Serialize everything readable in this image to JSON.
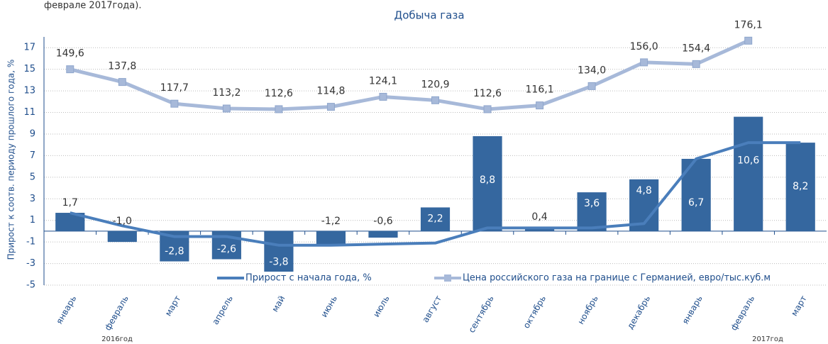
{
  "caption": "феврале 2017года).",
  "chart_data": {
    "type": "bar-line",
    "title": "Добыча газа",
    "ylabel": "Прирост к соотв. периоду прошлого года, %",
    "categories": [
      "январь",
      "февраль",
      "март",
      "апрель",
      "май",
      "июнь",
      "июль",
      "август",
      "сентябрь",
      "октябрь",
      "ноябрь",
      "декабрь",
      "январь",
      "февраль",
      "март"
    ],
    "annotations": [
      "2016год",
      "2017год"
    ],
    "ylim": [
      -5,
      18
    ],
    "yticks": [
      -5,
      -3,
      -1,
      1,
      3,
      5,
      7,
      9,
      11,
      13,
      15,
      17
    ],
    "y2lim": [
      -50.4,
      179.6
    ],
    "grid": true,
    "bars": {
      "color": "#35679f",
      "values": [
        1.7,
        -1.0,
        -2.8,
        -2.6,
        -3.8,
        -1.2,
        -0.6,
        2.2,
        8.8,
        0.4,
        3.6,
        4.8,
        6.7,
        10.6,
        8.2
      ],
      "value_labels": [
        "1,7",
        "-1,0",
        "-2,8",
        "-2,6",
        "-3,8",
        "-1,2",
        "-0,6",
        "2,2",
        "8,8",
        "0,4",
        "3,6",
        "4,8",
        "6,7",
        "10,6",
        "8,2"
      ]
    },
    "series": [
      {
        "name": "Прирост с начала года, %",
        "color": "#4a7ebb",
        "values": [
          1.7,
          0.5,
          -0.5,
          -0.5,
          -1.3,
          -1.3,
          -1.2,
          -1.1,
          0.3,
          0.3,
          0.3,
          0.7,
          6.7,
          8.2,
          8.2
        ]
      },
      {
        "name": "Цена российского газа на границе с Германией, евро/тыс.куб.м",
        "color": "#a7b9d9",
        "axis": "y2",
        "values": [
          149.6,
          137.8,
          117.7,
          113.2,
          112.6,
          114.8,
          124.1,
          120.9,
          112.6,
          116.1,
          134.0,
          156.0,
          154.4,
          176.1,
          null
        ],
        "value_labels": [
          "149,6",
          "137,8",
          "117,7",
          "113,2",
          "112,6",
          "114,8",
          "124,1",
          "120,9",
          "112,6",
          "116,1",
          "134,0",
          "156,0",
          "154,4",
          "176,1",
          null
        ]
      }
    ]
  }
}
